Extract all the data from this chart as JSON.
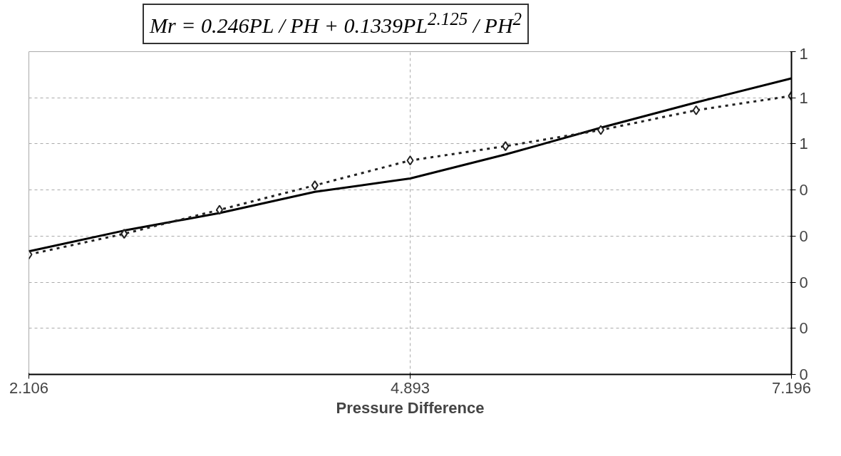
{
  "chart_data": {
    "type": "line",
    "title": "Mr = 0.246PL / PH + 0.1339PL$^{2.125}$ / PH$^{2}$",
    "xlabel": "Pressure Difference",
    "categories": [
      "2.106",
      null,
      null,
      null,
      "4.893",
      null,
      null,
      null,
      "7.196"
    ],
    "series": [
      {
        "color": "#000000",
        "line_style": "solid",
        "marker": "none",
        "values": [
          0.267,
          0.312,
          0.35,
          0.396,
          0.425,
          0.477,
          0.535,
          0.59,
          0.642
        ]
      },
      {
        "color": "#222222",
        "line_style": "dotted",
        "marker": "diamond",
        "values": [
          0.26,
          0.305,
          0.357,
          0.41,
          0.464,
          0.495,
          0.53,
          0.573,
          0.604
        ]
      }
    ],
    "ylim": [
      0,
      0.7
    ],
    "yticks": [
      {
        "value": 0,
        "label": "0"
      },
      {
        "value": 0.1,
        "label": "0"
      },
      {
        "value": 0.2,
        "label": "0"
      },
      {
        "value": 0.3,
        "label": "0"
      },
      {
        "value": 0.4,
        "label": "0"
      },
      {
        "value": 0.5,
        "label": "1"
      },
      {
        "value": 0.6,
        "label": "1"
      },
      {
        "value": 0.7,
        "label": "1"
      }
    ],
    "grid": true
  }
}
